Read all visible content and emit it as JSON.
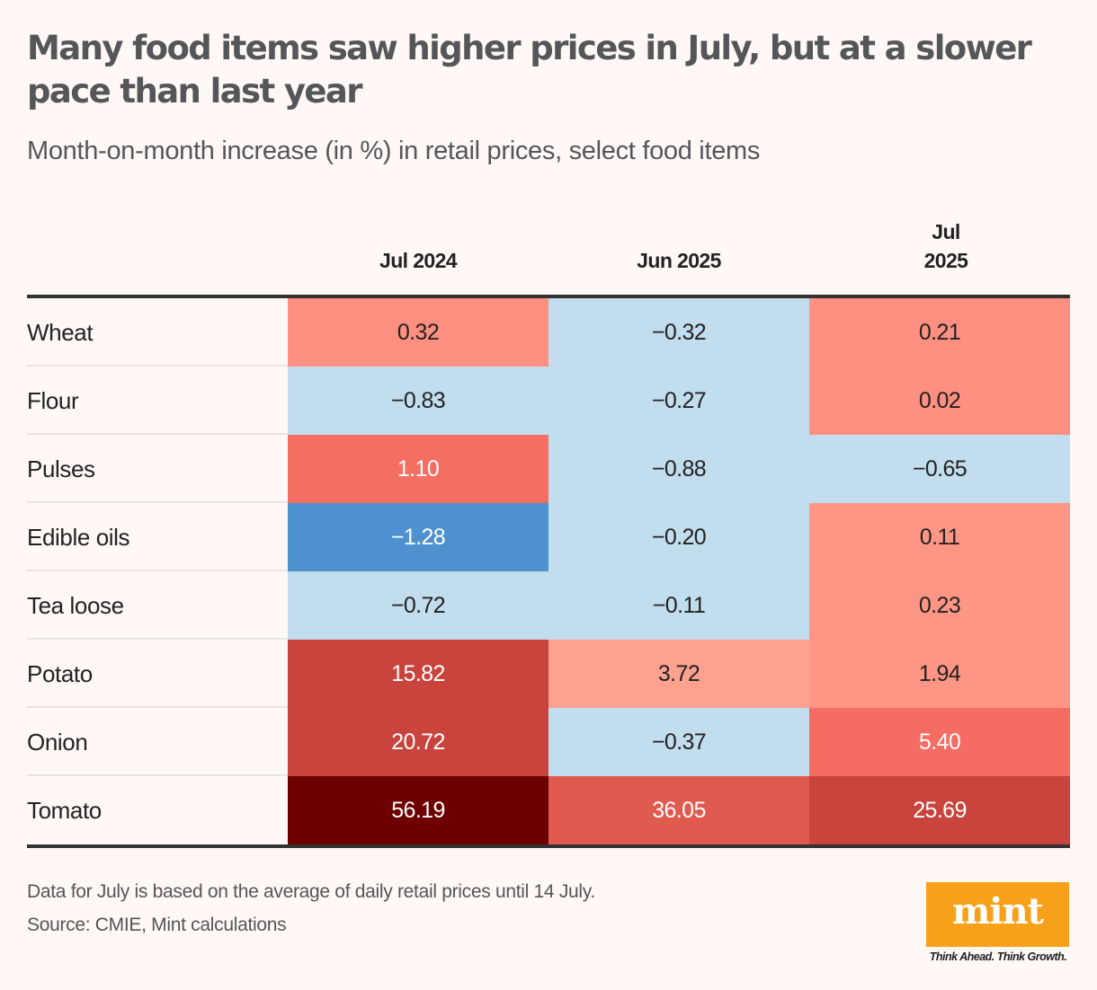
{
  "header": {
    "title": "Many food items saw higher prices in July, but at a slower pace than last year",
    "subtitle": "Month-on-month increase (in %) in retail prices, select food items"
  },
  "chart_data": {
    "type": "heatmap",
    "title": "Many food items saw higher prices in July, but at a slower pace than last year",
    "subtitle": "Month-on-month increase (in %) in retail prices, select food items",
    "columns": [
      "Jul 2024",
      "Jun 2025",
      "Jul 2025"
    ],
    "rows": [
      "Wheat",
      "Flour",
      "Pulses",
      "Edible oils",
      "Tea loose",
      "Potato",
      "Onion",
      "Tomato"
    ],
    "values": [
      [
        0.32,
        -0.32,
        0.21
      ],
      [
        -0.83,
        -0.27,
        0.02
      ],
      [
        1.1,
        -0.88,
        -0.65
      ],
      [
        -1.28,
        -0.2,
        0.11
      ],
      [
        -0.72,
        -0.11,
        0.23
      ],
      [
        15.82,
        3.72,
        1.94
      ],
      [
        20.72,
        -0.37,
        5.4
      ],
      [
        56.19,
        36.05,
        25.69
      ]
    ],
    "labels": [
      [
        "0.32",
        "−0.32",
        "0.21"
      ],
      [
        "−0.83",
        "−0.27",
        "0.02"
      ],
      [
        "1.10",
        "−0.88",
        "−0.65"
      ],
      [
        "−1.28",
        "−0.20",
        "0.11"
      ],
      [
        "−0.72",
        "−0.11",
        "0.23"
      ],
      [
        "15.82",
        "3.72",
        "1.94"
      ],
      [
        "20.72",
        "−0.37",
        "5.40"
      ],
      [
        "56.19",
        "36.05",
        "25.69"
      ]
    ],
    "cell_colors": [
      [
        "#ff8f80",
        "#c2ddee",
        "#ff8f80"
      ],
      [
        "#c2ddee",
        "#c2ddee",
        "#ff8f80"
      ],
      [
        "#f56e62",
        "#c2ddee",
        "#c2ddee"
      ],
      [
        "#4d91cf",
        "#c2ddee",
        "#ff9585"
      ],
      [
        "#c2ddee",
        "#c2ddee",
        "#ff9585"
      ],
      [
        "#c8443d",
        "#ffa18f",
        "#ff9585"
      ],
      [
        "#c8443d",
        "#c2ddee",
        "#f56c62"
      ],
      [
        "#6e0000",
        "#e05a4f",
        "#c8443d"
      ]
    ],
    "text_colors": [
      [
        "#222222",
        "#222222",
        "#222222"
      ],
      [
        "#222222",
        "#222222",
        "#222222"
      ],
      [
        "#ffffff",
        "#222222",
        "#222222"
      ],
      [
        "#ffffff",
        "#222222",
        "#222222"
      ],
      [
        "#222222",
        "#222222",
        "#222222"
      ],
      [
        "#ffffff",
        "#222222",
        "#222222"
      ],
      [
        "#ffffff",
        "#222222",
        "#ffffff"
      ],
      [
        "#ffffff",
        "#ffffff",
        "#ffffff"
      ]
    ]
  },
  "footer": {
    "note": "Data for July is based on the average of daily retail prices until 14 July.",
    "source": "Source: CMIE, Mint calculations",
    "logo_text": "mint",
    "tagline": "Think Ahead. Think Growth.",
    "logo_color": "#f7a11a"
  }
}
